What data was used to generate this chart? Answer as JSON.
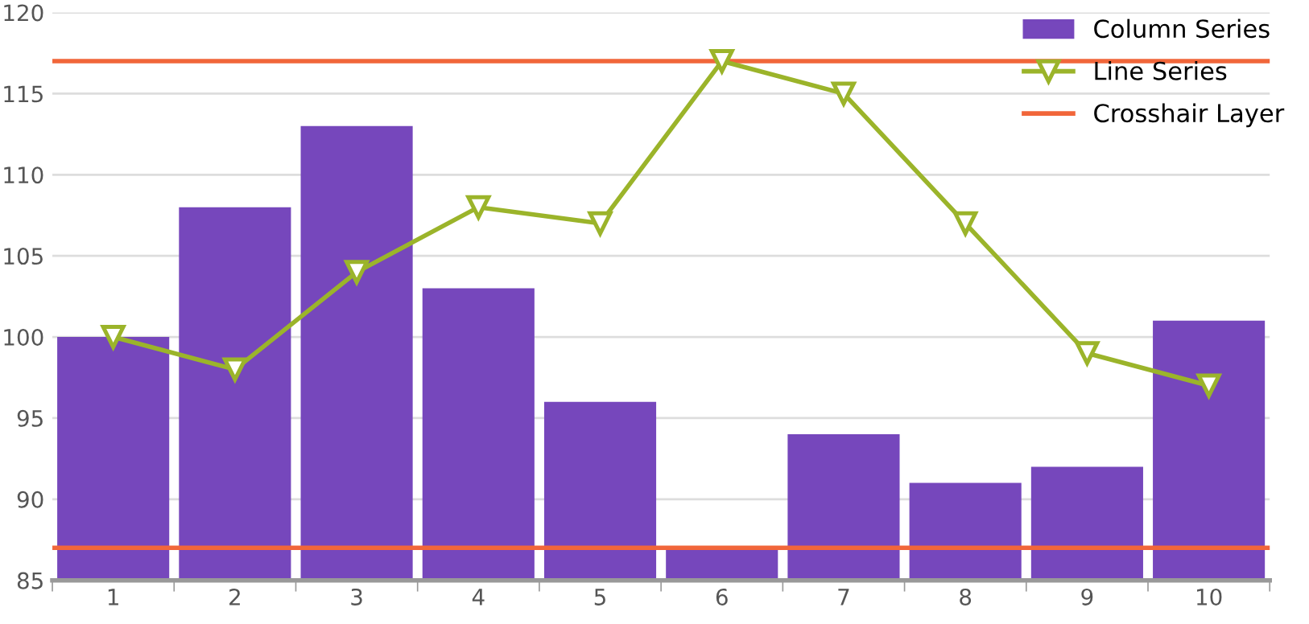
{
  "chart_data": {
    "type": "bar",
    "categories": [
      "1",
      "2",
      "3",
      "4",
      "5",
      "6",
      "7",
      "8",
      "9",
      "10"
    ],
    "series": [
      {
        "name": "Column Series",
        "color": "#7647bc",
        "values": [
          100,
          108,
          113,
          103,
          96,
          87,
          94,
          91,
          92,
          101
        ]
      },
      {
        "name": "Line Series",
        "type": "line",
        "color": "#9bb42a",
        "marker": "triangle",
        "values": [
          100,
          98,
          104,
          108,
          107,
          117,
          115,
          107,
          99,
          97
        ]
      }
    ],
    "ref_lines": [
      {
        "axis": "y",
        "value": 117,
        "label": "Crosshair Layer",
        "color": "#f1663a"
      },
      {
        "axis": "y",
        "value": 87,
        "color": "#f1663a"
      }
    ],
    "ylim": [
      85,
      120
    ],
    "yticks": [
      85,
      90,
      95,
      100,
      105,
      110,
      115,
      120
    ],
    "grid": "y",
    "legend": "top right"
  }
}
